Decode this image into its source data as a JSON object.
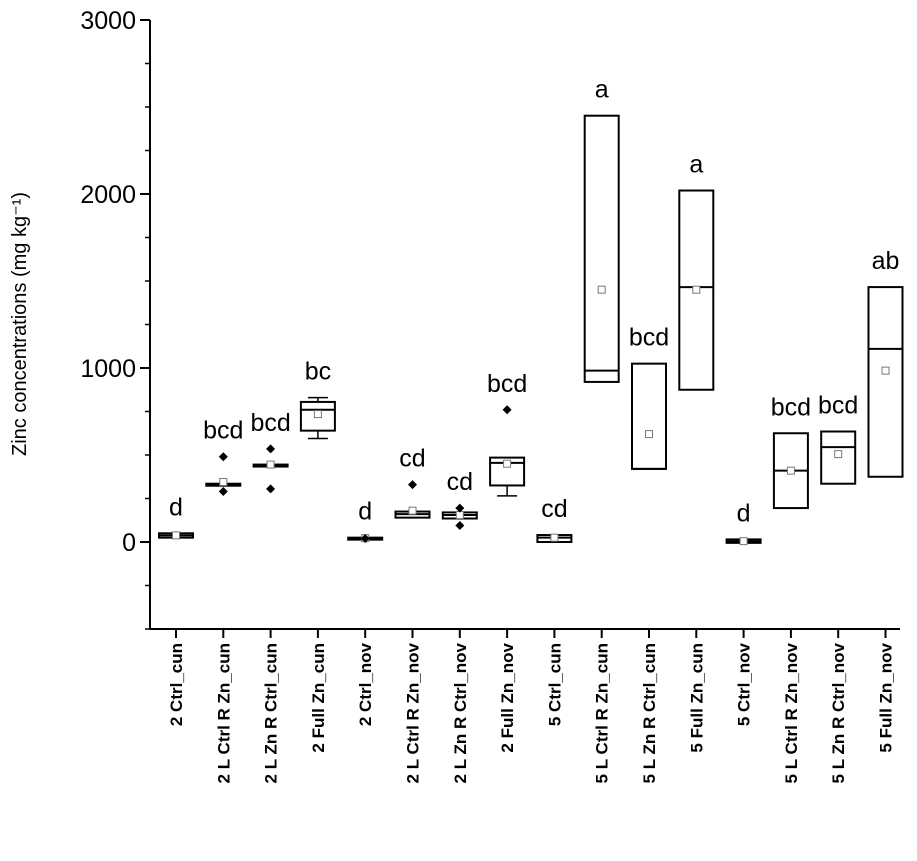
{
  "chart_data": {
    "type": "box",
    "ylabel": "Zinc concentrations (mg kg⁻¹)",
    "xlabel": "",
    "title": "",
    "ylim": [
      -500,
      3000
    ],
    "yticks": [
      0,
      1000,
      2000,
      3000
    ],
    "grid": false,
    "categories": [
      "2 Ctrl_cun",
      "2 L Ctrl R Zn_cun",
      "2 L Zn R Ctrl_cun",
      "2 Full Zn_cun",
      "2 Ctrl_nov",
      "2 L Ctrl R Zn_nov",
      "2 L Zn R Ctrl_nov",
      "2 Full Zn_nov",
      "5 Ctrl_cun",
      "5 L Ctrl R Zn_cun",
      "5 L Zn R Ctrl_cun",
      "5 Full Zn_cun",
      "5 Ctrl_nov",
      "5 L Ctrl R Zn_nov",
      "5 L Zn R Ctrl_nov",
      "5 Full Zn_nov"
    ],
    "letters": [
      "d",
      "bcd",
      "bcd",
      "bc",
      "d",
      "cd",
      "cd",
      "bcd",
      "cd",
      "a",
      "bcd",
      "a",
      "d",
      "bcd",
      "bcd",
      "ab"
    ],
    "boxes": [
      {
        "q1": 25,
        "median": 38,
        "q3": 50,
        "wlow": null,
        "whigh": null,
        "mean": 38,
        "outliers": []
      },
      {
        "q1": 325,
        "median": 330,
        "q3": 335,
        "wlow": null,
        "whigh": null,
        "mean": 345,
        "outliers": [
          490,
          290
        ]
      },
      {
        "q1": 435,
        "median": 440,
        "q3": 445,
        "wlow": null,
        "whigh": null,
        "mean": 445,
        "outliers": [
          535,
          305
        ]
      },
      {
        "q1": 640,
        "median": 760,
        "q3": 805,
        "wlow": 595,
        "whigh": 830,
        "mean": 735,
        "outliers": []
      },
      {
        "q1": 15,
        "median": 20,
        "q3": 25,
        "wlow": null,
        "whigh": null,
        "mean": 22,
        "outliers": [
          20
        ]
      },
      {
        "q1": 140,
        "median": 160,
        "q3": 175,
        "wlow": null,
        "whigh": null,
        "mean": 180,
        "outliers": [
          330
        ]
      },
      {
        "q1": 135,
        "median": 155,
        "q3": 170,
        "wlow": null,
        "whigh": null,
        "mean": 155,
        "outliers": [
          195,
          95
        ]
      },
      {
        "q1": 325,
        "median": 455,
        "q3": 485,
        "wlow": 265,
        "whigh": null,
        "mean": 450,
        "outliers": [
          760
        ]
      },
      {
        "q1": 0,
        "median": 25,
        "q3": 40,
        "wlow": null,
        "whigh": null,
        "mean": 25,
        "outliers": []
      },
      {
        "q1": 920,
        "median": 985,
        "q3": 2450,
        "wlow": null,
        "whigh": null,
        "mean": 1450,
        "outliers": []
      },
      {
        "q1": 420,
        "median": 420,
        "q3": 1025,
        "wlow": null,
        "whigh": null,
        "mean": 620,
        "outliers": []
      },
      {
        "q1": 875,
        "median": 1465,
        "q3": 2020,
        "wlow": null,
        "whigh": null,
        "mean": 1450,
        "outliers": []
      },
      {
        "q1": -5,
        "median": 5,
        "q3": 15,
        "wlow": null,
        "whigh": null,
        "mean": 5,
        "outliers": []
      },
      {
        "q1": 195,
        "median": 410,
        "q3": 625,
        "wlow": null,
        "whigh": null,
        "mean": 410,
        "outliers": []
      },
      {
        "q1": 335,
        "median": 545,
        "q3": 635,
        "wlow": null,
        "whigh": null,
        "mean": 505,
        "outliers": []
      },
      {
        "q1": 375,
        "median": 1110,
        "q3": 1465,
        "wlow": null,
        "whigh": null,
        "mean": 985,
        "outliers": []
      }
    ]
  }
}
